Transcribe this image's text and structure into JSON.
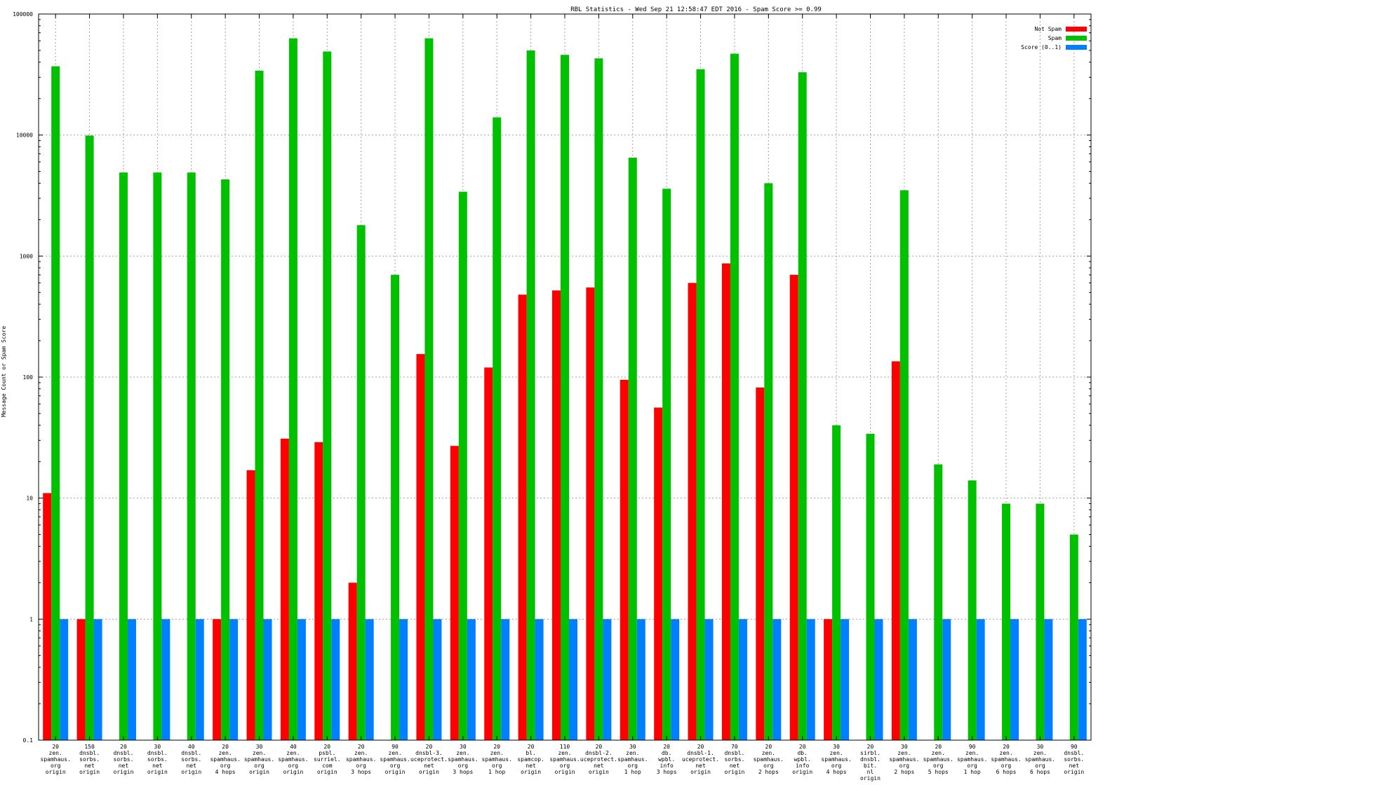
{
  "chart_data": {
    "type": "bar",
    "title": "RBL Statistics - Wed Sep 21 12:58:47 EDT 2016 - Spam Score >= 0.99",
    "xlabel": "",
    "ylabel": "Message Count or Spam Score",
    "yscale": "log",
    "ylim": [
      0.1,
      100000
    ],
    "yticks": [
      {
        "value": 0.1,
        "label": "0.1"
      },
      {
        "value": 1,
        "label": "1"
      },
      {
        "value": 10,
        "label": "10"
      },
      {
        "value": 100,
        "label": "100"
      },
      {
        "value": 1000,
        "label": "1000"
      },
      {
        "value": 10000,
        "label": "10000"
      },
      {
        "value": 100000,
        "label": "100000"
      }
    ],
    "grid": true,
    "legend_position": "top-right",
    "categories": [
      [
        "20",
        "zen.",
        "spamhaus.",
        "org",
        "origin"
      ],
      [
        "150",
        "dnsbl.",
        "sorbs.",
        "net",
        "origin"
      ],
      [
        "20",
        "dnsbl.",
        "sorbs.",
        "net",
        "origin"
      ],
      [
        "30",
        "dnsbl.",
        "sorbs.",
        "net",
        "origin"
      ],
      [
        "40",
        "dnsbl.",
        "sorbs.",
        "net",
        "origin"
      ],
      [
        "20",
        "zen.",
        "spamhaus.",
        "org",
        "4 hops"
      ],
      [
        "30",
        "zen.",
        "spamhaus.",
        "org",
        "origin"
      ],
      [
        "40",
        "zen.",
        "spamhaus.",
        "org",
        "origin"
      ],
      [
        "20",
        "psbl.",
        "surriel.",
        "com",
        "origin"
      ],
      [
        "20",
        "zen.",
        "spamhaus.",
        "org",
        "3 hops"
      ],
      [
        "90",
        "zen.",
        "spamhaus.",
        "org",
        "origin"
      ],
      [
        "20",
        "dnsbl-3.",
        "uceprotect.",
        "net",
        "origin"
      ],
      [
        "30",
        "zen.",
        "spamhaus.",
        "org",
        "3 hops"
      ],
      [
        "20",
        "zen.",
        "spamhaus.",
        "org",
        "1 hop"
      ],
      [
        "20",
        "bl.",
        "spamcop.",
        "net",
        "origin"
      ],
      [
        "110",
        "zen.",
        "spamhaus.",
        "org",
        "origin"
      ],
      [
        "20",
        "dnsbl-2.",
        "uceprotect.",
        "net",
        "origin"
      ],
      [
        "30",
        "zen.",
        "spamhaus.",
        "org",
        "1 hop"
      ],
      [
        "20",
        "db.",
        "wpbl.",
        "info",
        "3 hops"
      ],
      [
        "20",
        "dnsbl-1.",
        "uceprotect.",
        "net",
        "origin"
      ],
      [
        "70",
        "dnsbl.",
        "sorbs.",
        "net",
        "origin"
      ],
      [
        "20",
        "zen.",
        "spamhaus.",
        "org",
        "2 hops"
      ],
      [
        "20",
        "db.",
        "wpbl.",
        "info",
        "origin"
      ],
      [
        "30",
        "zen.",
        "spamhaus.",
        "org",
        "4 hops"
      ],
      [
        "20",
        "sirbl.",
        "dnsbl.",
        "bit.",
        "nl",
        "origin"
      ],
      [
        "30",
        "zen.",
        "spamhaus.",
        "org",
        "2 hops"
      ],
      [
        "20",
        "zen.",
        "spamhaus.",
        "org",
        "5 hops"
      ],
      [
        "90",
        "zen.",
        "spamhaus.",
        "org",
        "1 hop"
      ],
      [
        "20",
        "zen.",
        "spamhaus.",
        "org",
        "6 hops"
      ],
      [
        "30",
        "zen.",
        "spamhaus.",
        "org",
        "6 hops"
      ],
      [
        "90",
        "dnsbl.",
        "sorbs.",
        "net",
        "origin"
      ]
    ],
    "series": [
      {
        "name": "Not Spam",
        "color": "#ff0000",
        "values": [
          11,
          1,
          null,
          null,
          null,
          1,
          17,
          31,
          29,
          2,
          null,
          155,
          27,
          120,
          480,
          520,
          550,
          95,
          56,
          600,
          870,
          82,
          700,
          1,
          null,
          135,
          null,
          null,
          null,
          null,
          null
        ]
      },
      {
        "name": "Spam",
        "color": "#00c000",
        "values": [
          37000,
          9900,
          4900,
          4900,
          4900,
          4300,
          34000,
          63000,
          49000,
          1800,
          700,
          63000,
          3400,
          14000,
          50000,
          46000,
          43000,
          6500,
          3600,
          35000,
          47000,
          4000,
          33000,
          40,
          34,
          3500,
          19,
          14,
          9,
          9,
          5
        ]
      },
      {
        "name": "Score (0..1)",
        "color": "#0080ff",
        "values": [
          1,
          1,
          1,
          1,
          1,
          1,
          1,
          1,
          1,
          1,
          1,
          1,
          1,
          1,
          1,
          1,
          1,
          1,
          1,
          1,
          1,
          1,
          1,
          1,
          1,
          1,
          1,
          1,
          1,
          1,
          1
        ]
      }
    ]
  }
}
